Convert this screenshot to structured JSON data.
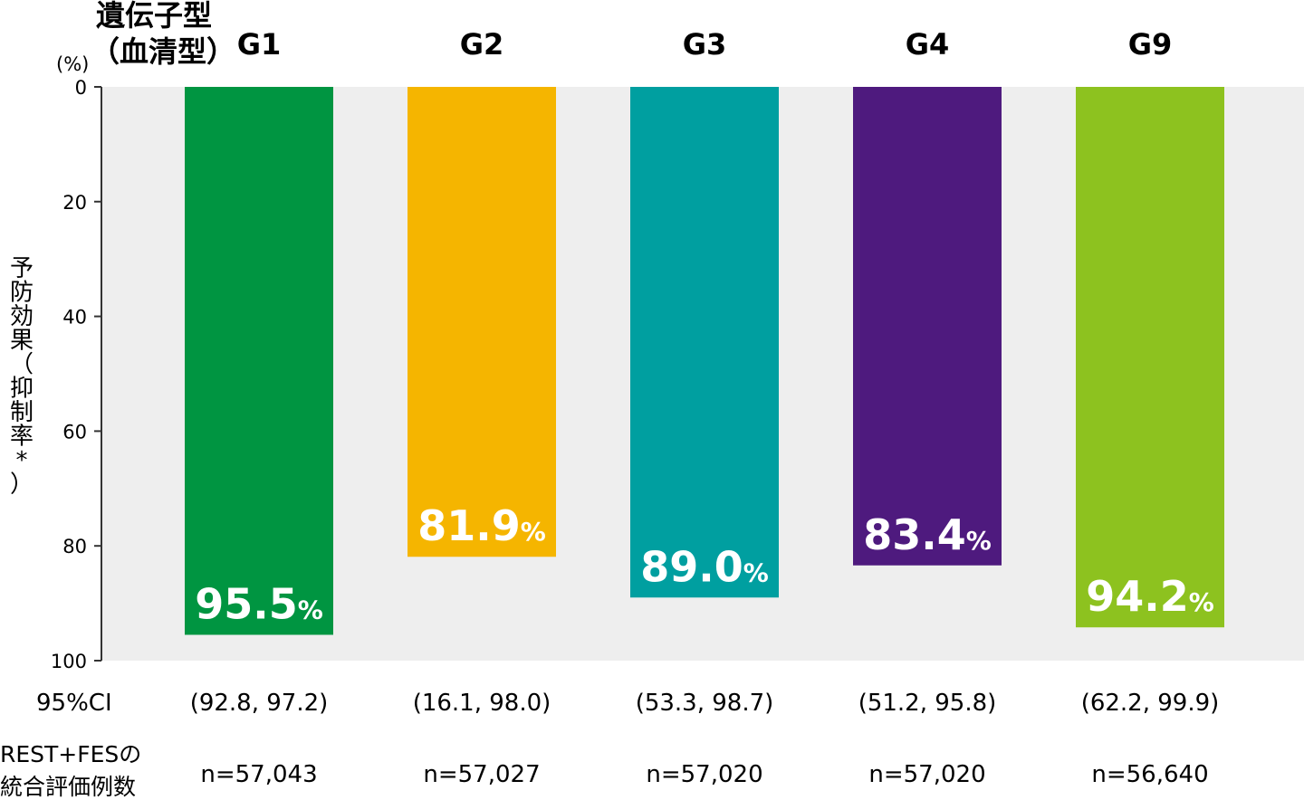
{
  "chart_data": {
    "type": "bar",
    "orientation": "vertical-inverted",
    "header_label_line1": "遺伝子型",
    "header_label_line2": "（血清型）",
    "unit_label": "(%)",
    "ylabel_chars": [
      "予",
      "防",
      "効",
      "果",
      "（",
      "抑",
      "制",
      "率",
      "*",
      "）"
    ],
    "ylim": [
      0,
      100
    ],
    "yticks": [
      "0",
      "20",
      "40",
      "60",
      "80",
      "100"
    ],
    "ytick_values": [
      0,
      20,
      40,
      60,
      80,
      100
    ],
    "categories": [
      "G1",
      "G2",
      "G3",
      "G4",
      "G9"
    ],
    "values": [
      95.5,
      81.9,
      89.0,
      83.4,
      94.2
    ],
    "value_labels": [
      "95.5",
      "81.9",
      "89.0",
      "83.4",
      "94.2"
    ],
    "value_suffix": "%",
    "colors": [
      "#009541",
      "#F5B500",
      "#009FA0",
      "#4E1A7E",
      "#8DC21F"
    ],
    "plot_background": "#EEEEEE",
    "ci_label": "95%CI",
    "ci": [
      "(92.8, 97.2)",
      "(16.1, 98.0)",
      "(53.3, 98.7)",
      "(51.2, 95.8)",
      "(62.2, 99.9)"
    ],
    "n_label_line1": "REST+FESの",
    "n_label_line2": "統合評価例数",
    "n": [
      "n=57,043",
      "n=57,027",
      "n=57,020",
      "n=57,020",
      "n=56,640"
    ]
  }
}
